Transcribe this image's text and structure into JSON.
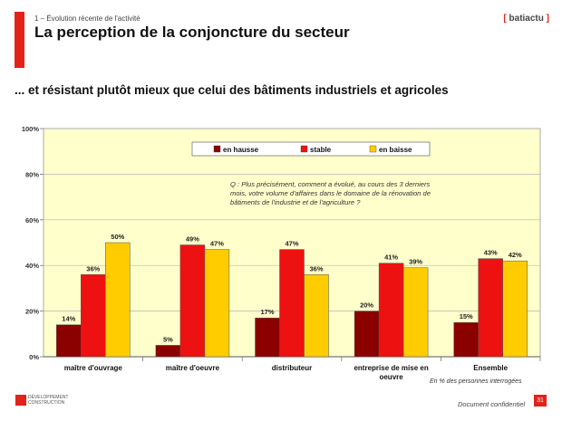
{
  "header": {
    "section": "1 – Évolution récente de l'activité",
    "title": "La perception de la conjoncture du secteur",
    "brand_open": "[",
    "brand_name": "batiactu",
    "brand_close": "]"
  },
  "subtitle": "... et résistant plutôt mieux que celui des bâtiments industriels et agricoles",
  "question": {
    "line1": "Q : Plus précisément, comment a évolué, au cours des 3 derniers",
    "line2": "mois, votre volume d'affaires dans le domaine de la rénovation de",
    "line3": "bâtiments de l'industrie et de l'agriculture ?"
  },
  "footer": {
    "note": "En % des personnes interrogées",
    "confidential": "Document confidentiel",
    "page": "31",
    "logo_line1": "DÉVELOPPEMENT",
    "logo_line2": "CONSTRUCTION"
  },
  "colors": {
    "hausse": "#8b0000",
    "stable": "#ee1111",
    "baisse": "#ffcc00",
    "plot_bg": "#ffffcc"
  },
  "chart_data": {
    "type": "bar",
    "categories": [
      [
        "maître d'ouvrage"
      ],
      [
        "maître d'oeuvre"
      ],
      [
        "distributeur"
      ],
      [
        "entreprise de mise en",
        "oeuvre"
      ],
      [
        "Ensemble"
      ]
    ],
    "series": [
      {
        "name": "en hausse",
        "values": [
          14,
          5,
          17,
          20,
          15
        ],
        "labels": [
          "14%",
          "5%",
          "17%",
          "20%",
          "15%"
        ]
      },
      {
        "name": "stable",
        "values": [
          36,
          49,
          47,
          41,
          43
        ],
        "labels": [
          "36%",
          "49%",
          "47%",
          "41%",
          "43%"
        ]
      },
      {
        "name": "en baisse",
        "values": [
          50,
          47,
          36,
          39,
          42
        ],
        "labels": [
          "50%",
          "47%",
          "36%",
          "39%",
          "42%"
        ]
      }
    ],
    "ylim": [
      0,
      100
    ],
    "yticks": [
      0,
      20,
      40,
      60,
      80,
      100
    ],
    "ytick_labels": [
      "0%",
      "20%",
      "40%",
      "60%",
      "80%",
      "100%"
    ],
    "legend_position": "top-center",
    "grid": true
  }
}
